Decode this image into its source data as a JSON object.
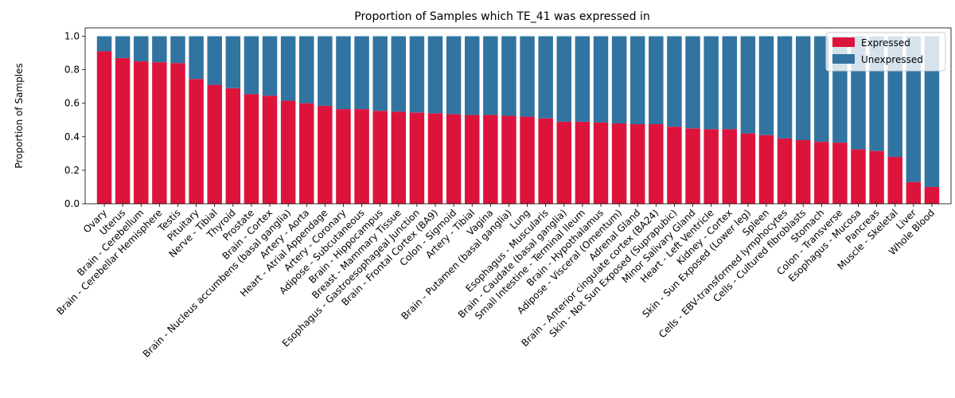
{
  "chart_data": {
    "type": "bar",
    "stacked": true,
    "title": "Proportion of Samples which TE_41 was expressed in",
    "xlabel": "",
    "ylabel": "Proportion of Samples",
    "ylim": [
      0,
      1.05
    ],
    "yticks": [
      "0.0",
      "0.2",
      "0.4",
      "0.6",
      "0.8",
      "1.0"
    ],
    "grid": false,
    "legend_position": "top-right",
    "categories": [
      "Ovary",
      "Uterus",
      "Brain - Cerebellum",
      "Brain - Cerebellar Hemisphere",
      "Testis",
      "Pituitary",
      "Nerve - Tibial",
      "Thyroid",
      "Prostate",
      "Brain - Cortex",
      "Brain - Nucleus accumbens (basal ganglia)",
      "Artery - Aorta",
      "Heart - Atrial Appendage",
      "Artery - Coronary",
      "Adipose - Subcutaneous",
      "Brain - Hippocampus",
      "Breast - Mammary Tissue",
      "Esophagus - Gastroesophageal Junction",
      "Brain - Frontal Cortex (BA9)",
      "Colon - Sigmoid",
      "Artery - Tibial",
      "Vagina",
      "Brain - Putamen (basal ganglia)",
      "Lung",
      "Esophagus - Muscularis",
      "Brain - Caudate (basal ganglia)",
      "Small Intestine - Terminal Ileum",
      "Brain - Hypothalamus",
      "Adipose - Visceral (Omentum)",
      "Adrenal Gland",
      "Brain - Anterior cingulate cortex (BA24)",
      "Skin - Not Sun Exposed (Suprapubic)",
      "Minor Salivary Gland",
      "Heart - Left Ventricle",
      "Kidney - Cortex",
      "Skin - Sun Exposed (Lower leg)",
      "Spleen",
      "Cells - EBV-transformed lymphocytes",
      "Cells - Cultured fibroblasts",
      "Stomach",
      "Colon - Transverse",
      "Esophagus - Mucosa",
      "Pancreas",
      "Muscle - Skeletal",
      "Liver",
      "Whole Blood"
    ],
    "series": [
      {
        "name": "Expressed",
        "color": "#dc143c",
        "values": [
          0.91,
          0.87,
          0.85,
          0.845,
          0.84,
          0.745,
          0.71,
          0.69,
          0.655,
          0.645,
          0.615,
          0.6,
          0.585,
          0.565,
          0.565,
          0.555,
          0.55,
          0.545,
          0.54,
          0.535,
          0.53,
          0.53,
          0.525,
          0.52,
          0.51,
          0.49,
          0.49,
          0.485,
          0.48,
          0.475,
          0.475,
          0.46,
          0.45,
          0.445,
          0.445,
          0.42,
          0.41,
          0.39,
          0.38,
          0.37,
          0.365,
          0.325,
          0.315,
          0.28,
          0.13,
          0.1
        ]
      },
      {
        "name": "Unexpressed",
        "color": "#3274a1",
        "values": [
          0.09,
          0.13,
          0.15,
          0.155,
          0.16,
          0.255,
          0.29,
          0.31,
          0.345,
          0.355,
          0.385,
          0.4,
          0.415,
          0.435,
          0.435,
          0.445,
          0.45,
          0.455,
          0.46,
          0.465,
          0.47,
          0.47,
          0.475,
          0.48,
          0.49,
          0.51,
          0.51,
          0.515,
          0.52,
          0.525,
          0.525,
          0.54,
          0.55,
          0.555,
          0.555,
          0.58,
          0.59,
          0.61,
          0.62,
          0.63,
          0.635,
          0.675,
          0.685,
          0.72,
          0.87,
          0.9
        ]
      }
    ]
  }
}
